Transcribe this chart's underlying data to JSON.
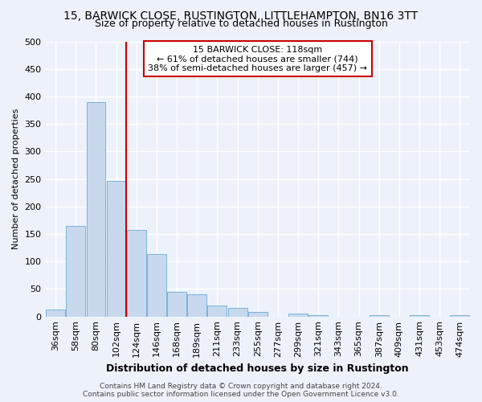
{
  "title1": "15, BARWICK CLOSE, RUSTINGTON, LITTLEHAMPTON, BN16 3TT",
  "title2": "Size of property relative to detached houses in Rustington",
  "xlabel": "Distribution of detached houses by size in Rustington",
  "ylabel": "Number of detached properties",
  "categories": [
    "36sqm",
    "58sqm",
    "80sqm",
    "102sqm",
    "124sqm",
    "146sqm",
    "168sqm",
    "189sqm",
    "211sqm",
    "233sqm",
    "255sqm",
    "277sqm",
    "299sqm",
    "321sqm",
    "343sqm",
    "365sqm",
    "387sqm",
    "409sqm",
    "431sqm",
    "453sqm",
    "474sqm"
  ],
  "values": [
    13,
    165,
    390,
    247,
    158,
    113,
    45,
    40,
    20,
    15,
    8,
    0,
    5,
    2,
    0,
    0,
    3,
    0,
    3,
    0,
    3
  ],
  "bar_color": "#c8d9ee",
  "bar_edge_color": "#6aaad4",
  "annotation_line1": "15 BARWICK CLOSE: 118sqm",
  "annotation_line2": "← 61% of detached houses are smaller (744)",
  "annotation_line3": "38% of semi-detached houses are larger (457) →",
  "annotation_box_color": "#ffffff",
  "annotation_box_edge_color": "#cc0000",
  "vline_color": "#cc0000",
  "footer": "Contains HM Land Registry data © Crown copyright and database right 2024.\nContains public sector information licensed under the Open Government Licence v3.0.",
  "ylim": [
    0,
    500
  ],
  "background_color": "#edf2fa",
  "plot_bg_color": "#edf2fa",
  "grid_color": "#ffffff",
  "title1_fontsize": 10,
  "title2_fontsize": 9,
  "xlabel_fontsize": 9,
  "ylabel_fontsize": 8,
  "tick_fontsize": 8,
  "annotation_fontsize": 8,
  "footer_fontsize": 6.5,
  "yticks": [
    0,
    50,
    100,
    150,
    200,
    250,
    300,
    350,
    400,
    450,
    500
  ]
}
